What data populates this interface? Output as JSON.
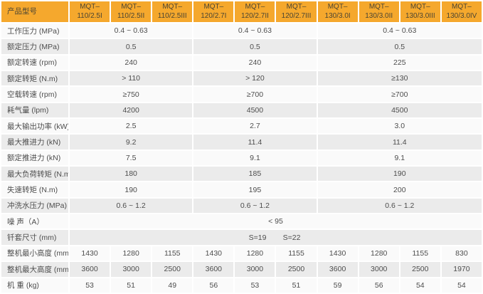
{
  "table": {
    "header": {
      "label": "产品型号",
      "models": [
        "MQT–\n110/2.5I",
        "MQT–\n110/2.5II",
        "MQT–\n110/2.5III",
        "MQT–\n120/2.7I",
        "MQT–\n120/2.7II",
        "MQT–\n120/2.7III",
        "MQT–\n130/3.0I",
        "MQT–\n130/3.0II",
        "MQT–\n130/3.0III",
        "MQT–\n130/3.0IV"
      ]
    },
    "grouped_rows": [
      {
        "label": "工作压力 (MPa)",
        "values": [
          "0.4 ~ 0.63",
          "0.4 ~ 0.63",
          "0.4 ~ 0.63"
        ]
      },
      {
        "label": "额定压力 (MPa)",
        "values": [
          "0.5",
          "0.5",
          "0.5"
        ]
      },
      {
        "label": "额定转速 (rpm)",
        "values": [
          "240",
          "240",
          "225"
        ]
      },
      {
        "label": "额定转矩 (N.m)",
        "values": [
          "> 110",
          "> 120",
          "≥130"
        ]
      },
      {
        "label": "空载转速 (rpm)",
        "values": [
          "≥750",
          "≥700",
          "≥700"
        ]
      },
      {
        "label": "耗气量 (lpm)",
        "values": [
          "4200",
          "4500",
          "4500"
        ]
      },
      {
        "label": "最大输出功率 (kW)",
        "values": [
          "2.5",
          "2.7",
          "3.0"
        ]
      },
      {
        "label": "最大推进力 (kN)",
        "values": [
          "9.2",
          "11.4",
          "11.4"
        ]
      },
      {
        "label": "额定推进力 (kN)",
        "values": [
          "7.5",
          "9.1",
          "9.1"
        ]
      },
      {
        "label": "最大负荷转矩 (N.m)",
        "values": [
          "180",
          "185",
          "190"
        ]
      },
      {
        "label": "失速转矩 (N.m)",
        "values": [
          "190",
          "195",
          "200"
        ]
      },
      {
        "label": "冲洗水压力 (MPa)",
        "values": [
          "0.6 ~ 1.2",
          "0.6 ~ 1.2",
          "0.6 ~ 1.2"
        ]
      }
    ],
    "noise_row": {
      "label": "噪 声（A）",
      "value": "< 95"
    },
    "sleeve_row": {
      "label": "钎套尺寸 (mm)",
      "s19": "S=19",
      "s22": "S=22"
    },
    "per_column_rows": [
      {
        "label": "整机最小高度 (mm)",
        "values": [
          "1430",
          "1280",
          "1155",
          "1430",
          "1280",
          "1155",
          "1430",
          "1280",
          "1155",
          "830"
        ]
      },
      {
        "label": "整机最大高度 (mm)",
        "values": [
          "3600",
          "3000",
          "2500",
          "3600",
          "3000",
          "2500",
          "3600",
          "3000",
          "2500",
          "1970"
        ]
      },
      {
        "label": "机 重 (kg)",
        "values": [
          "53",
          "51",
          "49",
          "56",
          "53",
          "51",
          "59",
          "56",
          "54",
          "54"
        ]
      }
    ]
  },
  "colors": {
    "header_bg": "#F5A82D",
    "header_text": "#4B4533",
    "row_odd": "#FAFAFA",
    "row_even": "#EBEBEB",
    "cell_text": "#4D4D4D",
    "gap": "#FFFFFF"
  }
}
